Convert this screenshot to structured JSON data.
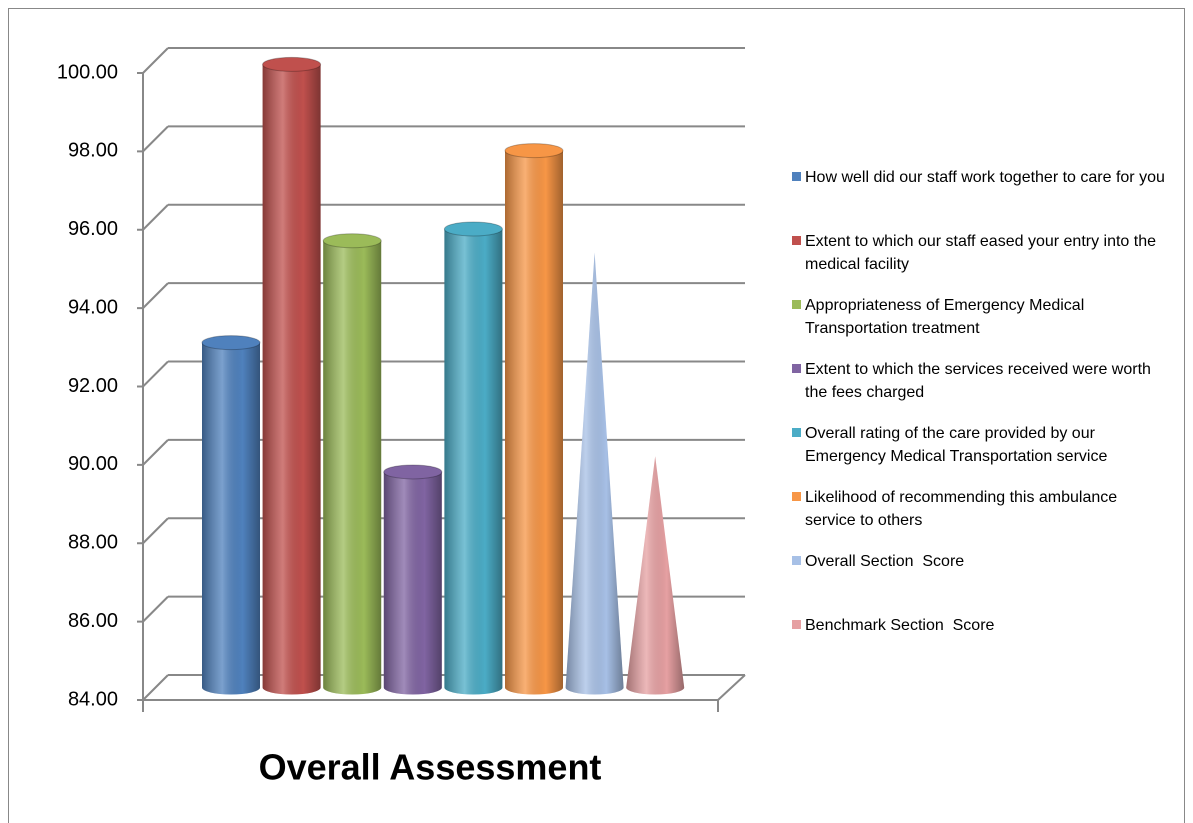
{
  "chart_data": {
    "type": "bar3d",
    "title": "Overall Assessment",
    "ylim": [
      84,
      100
    ],
    "yticks": [
      {
        "value": 84,
        "label": "84.00"
      },
      {
        "value": 86,
        "label": "86.00"
      },
      {
        "value": 88,
        "label": "88.00"
      },
      {
        "value": 90,
        "label": "90.00"
      },
      {
        "value": 92,
        "label": "92.00"
      },
      {
        "value": 94,
        "label": "94.00"
      },
      {
        "value": 96,
        "label": "96.00"
      },
      {
        "value": 98,
        "label": "98.00"
      },
      {
        "value": 100,
        "label": "100.00"
      }
    ],
    "grid": true,
    "legend": "right",
    "series": [
      {
        "name": "How well did our staff work together to care for you",
        "color": "#4f81bd",
        "shape": "cylinder",
        "values": [
          92.8
        ]
      },
      {
        "name": "Extent to which our staff eased your entry into the medical facility",
        "color": "#c0504d",
        "shape": "cylinder",
        "values": [
          99.9
        ]
      },
      {
        "name": "Appropriateness of Emergency Medical Transportation treatment",
        "color": "#9bbb59",
        "shape": "cylinder",
        "values": [
          95.4
        ]
      },
      {
        "name": "Extent to which the services received were worth the fees charged",
        "color": "#8064a2",
        "shape": "cylinder",
        "values": [
          89.5
        ]
      },
      {
        "name": "Overall rating of the care provided by our Emergency Medical Transportation service",
        "color": "#4bacc6",
        "shape": "cylinder",
        "values": [
          95.7
        ]
      },
      {
        "name": "Likelihood of recommending this ambulance service to others",
        "color": "#f79646",
        "shape": "cylinder",
        "values": [
          97.7
        ]
      },
      {
        "name": "Overall Section  Score",
        "color": "#a7c0e6",
        "shape": "cone",
        "values": [
          95.1
        ]
      },
      {
        "name": "Benchmark Section  Score",
        "color": "#e6a0a2",
        "shape": "cone",
        "values": [
          89.9
        ]
      }
    ]
  }
}
